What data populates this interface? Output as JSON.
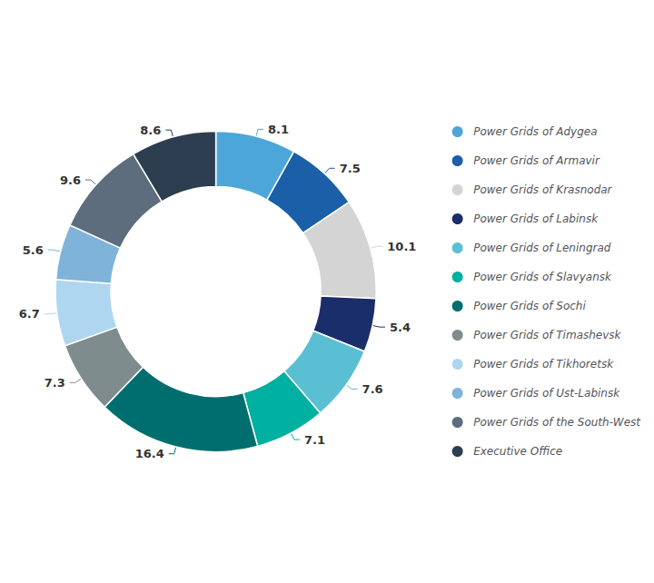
{
  "chart_data": {
    "type": "donut",
    "categories": [
      "Power Grids of Adygea",
      "Power Grids of Armavir",
      "Power Grids of Krasnodar",
      "Power Grids of Labinsk",
      "Power Grids of Leningrad",
      "Power Grids of Slavyansk",
      "Power Grids of Sochi",
      "Power Grids of Timashevsk",
      "Power Grids of Tikhoretsk",
      "Power Grids of Ust-Labinsk",
      "Power Grids of the South-West",
      "Executive Office"
    ],
    "values": [
      8.1,
      7.5,
      10.1,
      5.4,
      7.6,
      7.1,
      16.4,
      7.3,
      6.7,
      5.6,
      9.6,
      8.6
    ],
    "colors": [
      "#4da6d9",
      "#1a5fa8",
      "#d4d4d4",
      "#1a2e6b",
      "#5bbfd4",
      "#00b0a0",
      "#006e6e",
      "#7f8c8d",
      "#aed6f1",
      "#7fb3d9",
      "#5d6d7e",
      "#2c3e50"
    ],
    "data_labels": true,
    "legend": "right"
  }
}
